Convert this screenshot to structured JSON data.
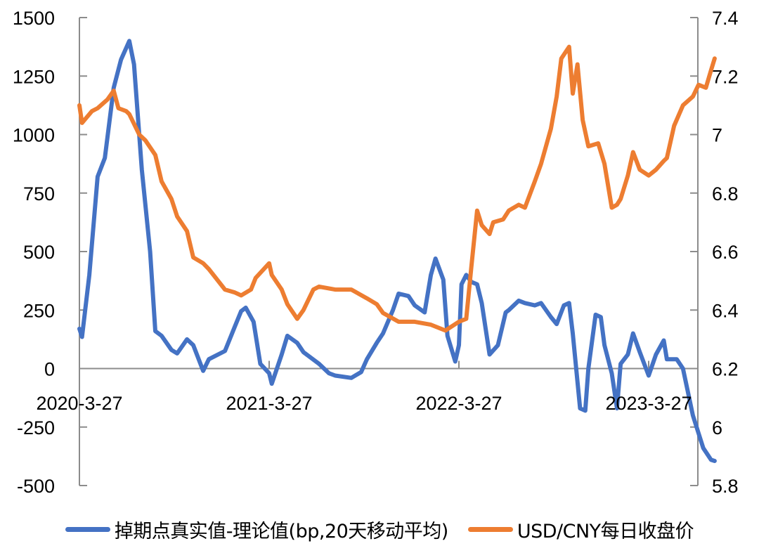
{
  "chart_data": {
    "type": "line",
    "title": "",
    "xlabel": "",
    "ylabel": "",
    "y2label": "",
    "grid": false,
    "legend_position": "bottom",
    "left_axis": {
      "range": [
        -500,
        1500
      ],
      "ticks": [
        1500,
        1250,
        1000,
        750,
        500,
        250,
        0,
        -250,
        -500
      ],
      "tick_labels": [
        "1500",
        "1250",
        "1000",
        "750",
        "500",
        "250",
        "0",
        "-250",
        "-500"
      ]
    },
    "right_axis": {
      "range": [
        5.8,
        7.4
      ],
      "ticks": [
        7.4,
        7.2,
        7.0,
        6.8,
        6.6,
        6.4,
        6.2,
        6.0,
        5.8
      ],
      "tick_labels": [
        "7.4",
        "7.2",
        "7",
        "6.8",
        "6.6",
        "6.4",
        "6.2",
        "6",
        "5.8"
      ]
    },
    "x_ticks": [
      "2020-3-27",
      "2021-3-27",
      "2022-3-27",
      "2023-3-27"
    ],
    "x_range": [
      "2020-3-27",
      "2023-10"
    ],
    "series": [
      {
        "name": "掉期点真实值-理论值(bp,20天移动平均)",
        "axis": "left",
        "color": "#4472C4",
        "points": [
          [
            "2020-3-27",
            170
          ],
          [
            "2020-4",
            135
          ],
          [
            "2020-4-15",
            400
          ],
          [
            "2020-5",
            820
          ],
          [
            "2020-5-15",
            900
          ],
          [
            "2020-6",
            1200
          ],
          [
            "2020-6-15",
            1320
          ],
          [
            "2020-7",
            1400
          ],
          [
            "2020-7-10",
            1300
          ],
          [
            "2020-7-25",
            850
          ],
          [
            "2020-8-10",
            500
          ],
          [
            "2020-8-20",
            160
          ],
          [
            "2020-9",
            140
          ],
          [
            "2020-9-20",
            80
          ],
          [
            "2020-10",
            65
          ],
          [
            "2020-10-20",
            125
          ],
          [
            "2020-11",
            100
          ],
          [
            "2020-11-20",
            -10
          ],
          [
            "2020-12",
            40
          ],
          [
            "2021-1",
            75
          ],
          [
            "2021-1-20",
            180
          ],
          [
            "2021-2",
            245
          ],
          [
            "2021-2-10",
            260
          ],
          [
            "2021-2-25",
            200
          ],
          [
            "2021-3-10",
            20
          ],
          [
            "2021-3-27",
            -20
          ],
          [
            "2021-4",
            -65
          ],
          [
            "2021-4-20",
            60
          ],
          [
            "2021-5",
            140
          ],
          [
            "2021-5-20",
            110
          ],
          [
            "2021-6",
            70
          ],
          [
            "2021-7",
            20
          ],
          [
            "2021-7-20",
            -20
          ],
          [
            "2021-8",
            -30
          ],
          [
            "2021-9",
            -40
          ],
          [
            "2021-9-20",
            -15
          ],
          [
            "2021-10",
            40
          ],
          [
            "2021-10-20",
            110
          ],
          [
            "2021-11",
            150
          ],
          [
            "2021-11-20",
            250
          ],
          [
            "2021-12",
            320
          ],
          [
            "2021-12-20",
            310
          ],
          [
            "2022-1",
            270
          ],
          [
            "2022-1-20",
            240
          ],
          [
            "2022-2",
            400
          ],
          [
            "2022-2-10",
            470
          ],
          [
            "2022-2-25",
            380
          ],
          [
            "2022-3-5",
            140
          ],
          [
            "2022-3-20",
            30
          ],
          [
            "2022-3-27",
            100
          ],
          [
            "2022-4",
            360
          ],
          [
            "2022-4-10",
            400
          ],
          [
            "2022-4-20",
            370
          ],
          [
            "2022-5",
            360
          ],
          [
            "2022-5-10",
            280
          ],
          [
            "2022-5-25",
            60
          ],
          [
            "2022-6-10",
            100
          ],
          [
            "2022-6-25",
            240
          ],
          [
            "2022-7",
            250
          ],
          [
            "2022-7-20",
            290
          ],
          [
            "2022-8",
            280
          ],
          [
            "2022-8-20",
            270
          ],
          [
            "2022-9",
            280
          ],
          [
            "2022-9-20",
            220
          ],
          [
            "2022-10",
            190
          ],
          [
            "2022-10-15",
            270
          ],
          [
            "2022-10-25",
            280
          ],
          [
            "2022-11",
            150
          ],
          [
            "2022-11-15",
            -170
          ],
          [
            "2022-11-25",
            -180
          ],
          [
            "2022-12",
            0
          ],
          [
            "2022-12-15",
            230
          ],
          [
            "2022-12-25",
            220
          ],
          [
            "2023-1",
            100
          ],
          [
            "2023-1-15",
            -20
          ],
          [
            "2023-1-25",
            -170
          ],
          [
            "2023-2",
            20
          ],
          [
            "2023-2-15",
            60
          ],
          [
            "2023-2-25",
            150
          ],
          [
            "2023-3-10",
            70
          ],
          [
            "2023-3-27",
            -30
          ],
          [
            "2023-4-10",
            60
          ],
          [
            "2023-4-25",
            120
          ],
          [
            "2023-5",
            40
          ],
          [
            "2023-5-20",
            40
          ],
          [
            "2023-6",
            0
          ],
          [
            "2023-6-20",
            -200
          ],
          [
            "2023-7-10",
            -340
          ],
          [
            "2023-7-25",
            -390
          ],
          [
            "2023-8",
            -395
          ]
        ]
      },
      {
        "name": "USD/CNY每日收盘价",
        "axis": "right",
        "color": "#ED7D31",
        "points": [
          [
            "2020-3-27",
            7.1
          ],
          [
            "2020-4",
            7.04
          ],
          [
            "2020-4-20",
            7.08
          ],
          [
            "2020-5",
            7.09
          ],
          [
            "2020-5-20",
            7.12
          ],
          [
            "2020-6",
            7.15
          ],
          [
            "2020-6-10",
            7.09
          ],
          [
            "2020-6-25",
            7.08
          ],
          [
            "2020-7",
            7.07
          ],
          [
            "2020-7-20",
            7.0
          ],
          [
            "2020-8",
            6.98
          ],
          [
            "2020-8-20",
            6.93
          ],
          [
            "2020-9",
            6.84
          ],
          [
            "2020-9-20",
            6.78
          ],
          [
            "2020-10",
            6.72
          ],
          [
            "2020-10-20",
            6.67
          ],
          [
            "2020-11",
            6.58
          ],
          [
            "2020-11-20",
            6.56
          ],
          [
            "2020-12",
            6.54
          ],
          [
            "2021-1",
            6.47
          ],
          [
            "2021-1-20",
            6.46
          ],
          [
            "2021-2",
            6.45
          ],
          [
            "2021-2-20",
            6.47
          ],
          [
            "2021-3",
            6.51
          ],
          [
            "2021-3-27",
            6.56
          ],
          [
            "2021-4",
            6.52
          ],
          [
            "2021-4-20",
            6.47
          ],
          [
            "2021-5",
            6.42
          ],
          [
            "2021-5-20",
            6.37
          ],
          [
            "2021-6",
            6.4
          ],
          [
            "2021-6-20",
            6.47
          ],
          [
            "2021-7",
            6.48
          ],
          [
            "2021-8",
            6.47
          ],
          [
            "2021-9",
            6.47
          ],
          [
            "2021-10",
            6.44
          ],
          [
            "2021-10-20",
            6.42
          ],
          [
            "2021-11",
            6.39
          ],
          [
            "2021-12",
            6.36
          ],
          [
            "2022-1",
            6.36
          ],
          [
            "2022-2",
            6.35
          ],
          [
            "2022-3",
            6.33
          ],
          [
            "2022-3-27",
            6.36
          ],
          [
            "2022-4-10",
            6.37
          ],
          [
            "2022-4-20",
            6.55
          ],
          [
            "2022-5",
            6.74
          ],
          [
            "2022-5-10",
            6.69
          ],
          [
            "2022-5-25",
            6.66
          ],
          [
            "2022-6",
            6.7
          ],
          [
            "2022-6-20",
            6.71
          ],
          [
            "2022-7",
            6.74
          ],
          [
            "2022-7-20",
            6.76
          ],
          [
            "2022-8",
            6.75
          ],
          [
            "2022-8-20",
            6.84
          ],
          [
            "2022-9",
            6.9
          ],
          [
            "2022-9-20",
            7.02
          ],
          [
            "2022-10",
            7.13
          ],
          [
            "2022-10-10",
            7.26
          ],
          [
            "2022-10-25",
            7.3
          ],
          [
            "2022-11",
            7.14
          ],
          [
            "2022-11-10",
            7.24
          ],
          [
            "2022-11-20",
            7.05
          ],
          [
            "2022-12",
            6.96
          ],
          [
            "2022-12-20",
            6.97
          ],
          [
            "2023-1",
            6.9
          ],
          [
            "2023-1-15",
            6.75
          ],
          [
            "2023-1-25",
            6.76
          ],
          [
            "2023-2",
            6.78
          ],
          [
            "2023-2-15",
            6.86
          ],
          [
            "2023-2-25",
            6.94
          ],
          [
            "2023-3-10",
            6.88
          ],
          [
            "2023-3-27",
            6.86
          ],
          [
            "2023-4-10",
            6.88
          ],
          [
            "2023-4-25",
            6.91
          ],
          [
            "2023-5",
            6.92
          ],
          [
            "2023-5-15",
            7.03
          ],
          [
            "2023-6",
            7.1
          ],
          [
            "2023-6-20",
            7.13
          ],
          [
            "2023-7",
            7.17
          ],
          [
            "2023-7-15",
            7.16
          ],
          [
            "2023-7-25",
            7.22
          ],
          [
            "2023-8",
            7.26
          ]
        ]
      }
    ]
  },
  "legend": {
    "items": [
      {
        "label": "掉期点真实值-理论值(bp,20天移动平均)",
        "color": "#4472C4"
      },
      {
        "label": "USD/CNY每日收盘价",
        "color": "#ED7D31"
      }
    ]
  }
}
